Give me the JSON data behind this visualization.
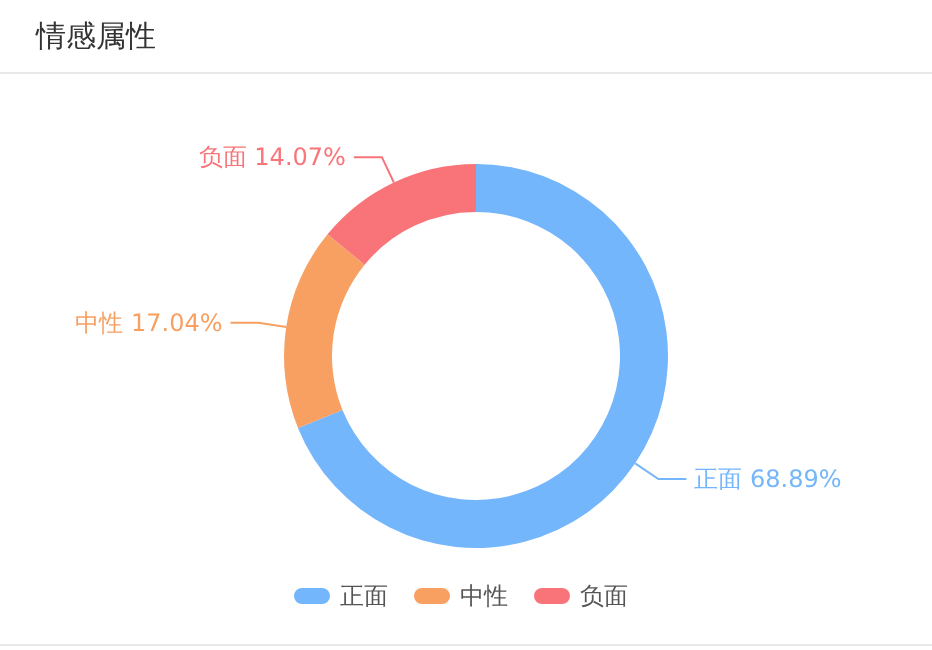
{
  "chart_data": {
    "type": "donut",
    "title": "情感属性",
    "categories": [
      "正面",
      "中性",
      "负面"
    ],
    "values": [
      68.89,
      17.04,
      14.07
    ],
    "value_labels": [
      "68.89%",
      "17.04%",
      "14.07%"
    ],
    "colors": [
      "#74b6fb",
      "#f7a062",
      "#f87479"
    ],
    "legend": "bottom"
  }
}
